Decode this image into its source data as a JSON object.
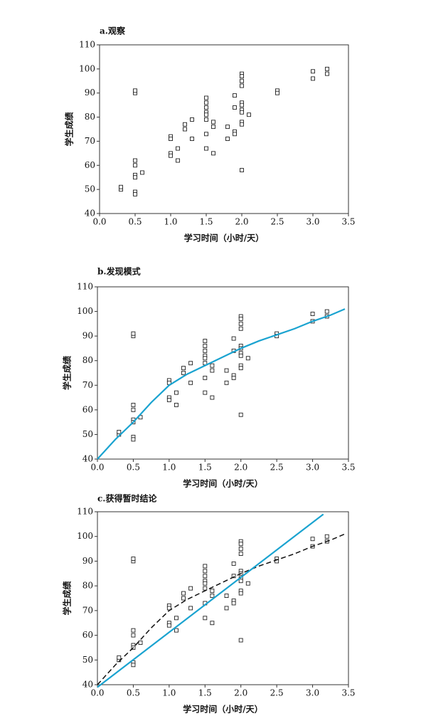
{
  "chart_data": [
    {
      "type": "scatter",
      "title": "a.观察",
      "xlabel": "学习时间（小时/天）",
      "ylabel": "学生成绩",
      "xlim": [
        0,
        3.5
      ],
      "ylim": [
        40,
        110
      ],
      "xticks": [
        {
          "value": 0,
          "label": "0.0"
        },
        0.5,
        {
          "value": 1,
          "label": "1.0"
        },
        1.5,
        {
          "value": 2,
          "label": "2.0"
        },
        2.5,
        {
          "value": 3,
          "label": "3.0"
        },
        3.5
      ],
      "yticks": [
        40,
        50,
        60,
        70,
        80,
        90,
        100,
        110
      ],
      "series": [
        {
          "type": "scatter",
          "color": "#222222",
          "marker": "square",
          "x": [
            0.3,
            0.3,
            0.5,
            0.5,
            0.5,
            0.5,
            0.5,
            0.5,
            0.5,
            0.5,
            0.6,
            1,
            1,
            1,
            1,
            1.1,
            1.1,
            1.2,
            1.2,
            1.3,
            1.3,
            1.5,
            1.5,
            1.5,
            1.5,
            1.5,
            1.5,
            1.5,
            1.5,
            1.6,
            1.6,
            1.6,
            1.8,
            1.8,
            1.9,
            1.9,
            1.9,
            1.9,
            2,
            2,
            2,
            2,
            2,
            2,
            2,
            2,
            2,
            2,
            2,
            2.1,
            2.5,
            2.5,
            3,
            3,
            3.2,
            3.2
          ],
          "values": [
            50,
            51,
            90,
            91,
            62,
            60,
            56,
            55,
            49,
            48,
            57,
            72,
            71,
            65,
            64,
            67,
            62,
            77,
            75,
            79,
            71,
            88,
            86,
            84,
            82,
            81,
            79,
            73,
            67,
            78,
            76,
            65,
            76,
            71,
            89,
            84,
            74,
            73,
            98,
            97,
            95,
            93,
            86,
            85,
            83,
            82,
            78,
            77,
            58,
            81,
            91,
            90,
            99,
            96,
            100,
            98
          ]
        }
      ]
    },
    {
      "type": "scatter",
      "title": "b.发现模式",
      "xlabel": "学习时间（小时/天）",
      "ylabel": "学生成绩",
      "xlim": [
        0,
        3.5
      ],
      "ylim": [
        40,
        110
      ],
      "xticks": [
        {
          "value": 0,
          "label": "0.0"
        },
        0.5,
        {
          "value": 1,
          "label": "1.0"
        },
        1.5,
        {
          "value": 2,
          "label": "2.0"
        },
        2.5,
        {
          "value": 3,
          "label": "3.0"
        },
        3.5
      ],
      "yticks": [
        40,
        50,
        60,
        70,
        80,
        90,
        100,
        110
      ],
      "series": [
        {
          "type": "scatter",
          "color": "#222222",
          "marker": "square",
          "x": [
            0.3,
            0.3,
            0.5,
            0.5,
            0.5,
            0.5,
            0.5,
            0.5,
            0.5,
            0.5,
            0.6,
            1,
            1,
            1,
            1,
            1.1,
            1.1,
            1.2,
            1.2,
            1.3,
            1.3,
            1.5,
            1.5,
            1.5,
            1.5,
            1.5,
            1.5,
            1.5,
            1.5,
            1.6,
            1.6,
            1.6,
            1.8,
            1.8,
            1.9,
            1.9,
            1.9,
            1.9,
            2,
            2,
            2,
            2,
            2,
            2,
            2,
            2,
            2,
            2,
            2,
            2.1,
            2.5,
            2.5,
            3,
            3,
            3.2,
            3.2
          ],
          "values": [
            50,
            51,
            90,
            91,
            62,
            60,
            56,
            55,
            49,
            48,
            57,
            72,
            71,
            65,
            64,
            67,
            62,
            77,
            75,
            79,
            71,
            88,
            86,
            84,
            82,
            81,
            79,
            73,
            67,
            78,
            76,
            65,
            76,
            71,
            89,
            84,
            74,
            73,
            98,
            97,
            95,
            93,
            86,
            85,
            83,
            82,
            78,
            77,
            58,
            81,
            91,
            90,
            99,
            96,
            100,
            98
          ]
        },
        {
          "type": "line",
          "color": "#1aa3d0",
          "dashed": false,
          "x": [
            0,
            0.25,
            0.5,
            0.75,
            1,
            1.25,
            1.5,
            1.75,
            2,
            2.25,
            2.5,
            2.75,
            3,
            3.25,
            3.45
          ],
          "values": [
            40,
            48,
            55,
            63,
            70,
            74.5,
            78,
            81.5,
            85,
            88,
            90.5,
            93,
            96,
            98.5,
            101
          ]
        }
      ]
    },
    {
      "type": "scatter",
      "title": "c.获得暂时结论",
      "xlabel": "学习时间（小时/天）",
      "ylabel": "学生成绩",
      "xlim": [
        0,
        3.5
      ],
      "ylim": [
        40,
        110
      ],
      "xticks": [
        {
          "value": 0,
          "label": "0.0"
        },
        0.5,
        {
          "value": 1,
          "label": "1.0"
        },
        1.5,
        {
          "value": 2,
          "label": "2.0"
        },
        2.5,
        {
          "value": 3,
          "label": "3.0"
        },
        3.5
      ],
      "yticks": [
        40,
        50,
        60,
        70,
        80,
        90,
        100,
        110
      ],
      "series": [
        {
          "type": "scatter",
          "color": "#222222",
          "marker": "square",
          "x": [
            0.3,
            0.3,
            0.5,
            0.5,
            0.5,
            0.5,
            0.5,
            0.5,
            0.5,
            0.5,
            0.6,
            1,
            1,
            1,
            1,
            1.1,
            1.1,
            1.2,
            1.2,
            1.3,
            1.3,
            1.5,
            1.5,
            1.5,
            1.5,
            1.5,
            1.5,
            1.5,
            1.5,
            1.6,
            1.6,
            1.6,
            1.8,
            1.8,
            1.9,
            1.9,
            1.9,
            1.9,
            2,
            2,
            2,
            2,
            2,
            2,
            2,
            2,
            2,
            2,
            2,
            2.1,
            2.5,
            2.5,
            3,
            3,
            3.2,
            3.2
          ],
          "values": [
            50,
            51,
            90,
            91,
            62,
            60,
            56,
            55,
            49,
            48,
            57,
            72,
            71,
            65,
            64,
            67,
            62,
            77,
            75,
            79,
            71,
            88,
            86,
            84,
            82,
            81,
            79,
            73,
            67,
            78,
            76,
            65,
            76,
            71,
            89,
            84,
            74,
            73,
            98,
            97,
            95,
            93,
            86,
            85,
            83,
            82,
            78,
            77,
            58,
            81,
            91,
            90,
            99,
            96,
            100,
            98
          ]
        },
        {
          "type": "line",
          "color": "#111111",
          "dashed": true,
          "x": [
            0,
            0.25,
            0.5,
            0.75,
            1,
            1.25,
            1.5,
            1.75,
            2,
            2.25,
            2.5,
            2.75,
            3,
            3.25,
            3.45
          ],
          "values": [
            40,
            48,
            55,
            63,
            70,
            74.5,
            78,
            81.5,
            85,
            88,
            90.5,
            93,
            96,
            98.5,
            101
          ]
        },
        {
          "type": "line",
          "color": "#1aa3d0",
          "dashed": false,
          "x": [
            0,
            3.15
          ],
          "values": [
            39,
            109
          ]
        }
      ]
    }
  ]
}
